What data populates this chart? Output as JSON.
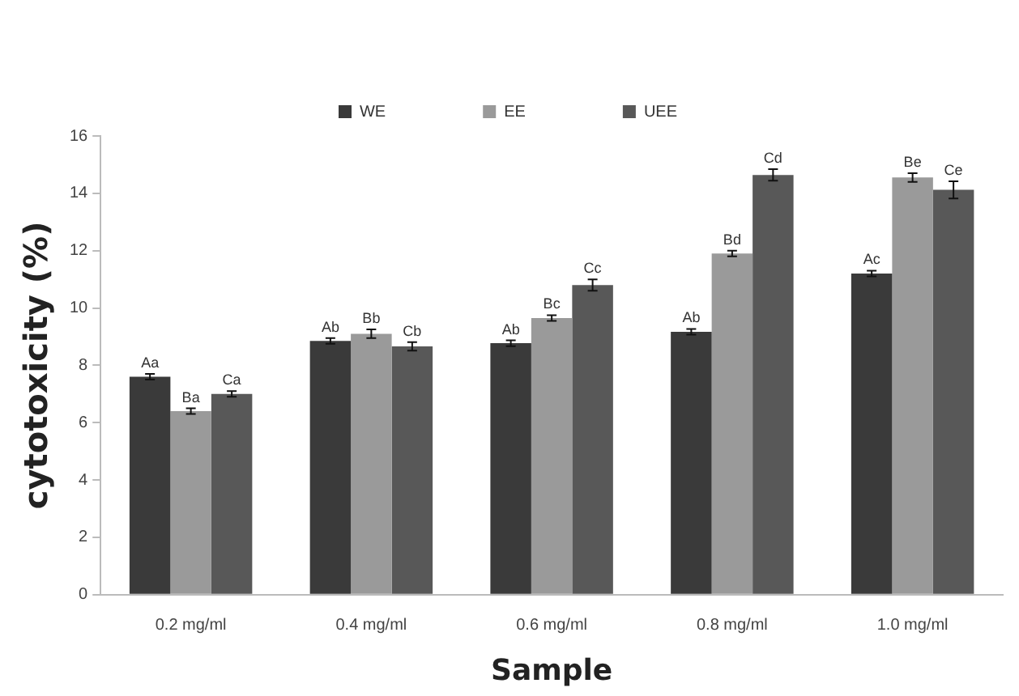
{
  "chart_data": {
    "type": "bar",
    "xlabel": "Sample",
    "ylabel": "cytotoxicity (%)",
    "categories": [
      "0.2 mg/ml",
      "0.4 mg/ml",
      "0.6 mg/ml",
      "0.8 mg/ml",
      "1.0 mg/ml"
    ],
    "series": [
      {
        "name": "WE",
        "color": "#3a3a3a",
        "values": [
          7.6,
          8.85,
          8.77,
          9.17,
          11.2
        ],
        "errors": [
          0.1,
          0.1,
          0.1,
          0.1,
          0.1
        ],
        "value_labels": [
          "Aa",
          "Ab",
          "Ab",
          "Ab",
          "Ac"
        ]
      },
      {
        "name": "EE",
        "color": "#9a9a9a",
        "values": [
          6.4,
          9.1,
          9.65,
          11.9,
          14.55
        ],
        "errors": [
          0.1,
          0.15,
          0.1,
          0.1,
          0.15
        ],
        "value_labels": [
          "Ba",
          "Bb",
          "Bc",
          "Bd",
          "Be"
        ]
      },
      {
        "name": "UEE",
        "color": "#585858",
        "values": [
          7.0,
          8.66,
          10.8,
          14.64,
          14.12
        ],
        "errors": [
          0.1,
          0.15,
          0.2,
          0.2,
          0.3
        ],
        "value_labels": [
          "Ca",
          "Cb",
          "Cc",
          "Cd",
          "Ce"
        ]
      }
    ],
    "ylim": [
      0,
      16
    ],
    "yticks": [
      0,
      2,
      4,
      6,
      8,
      10,
      12,
      14,
      16
    ],
    "grid": false,
    "legend": "top"
  }
}
